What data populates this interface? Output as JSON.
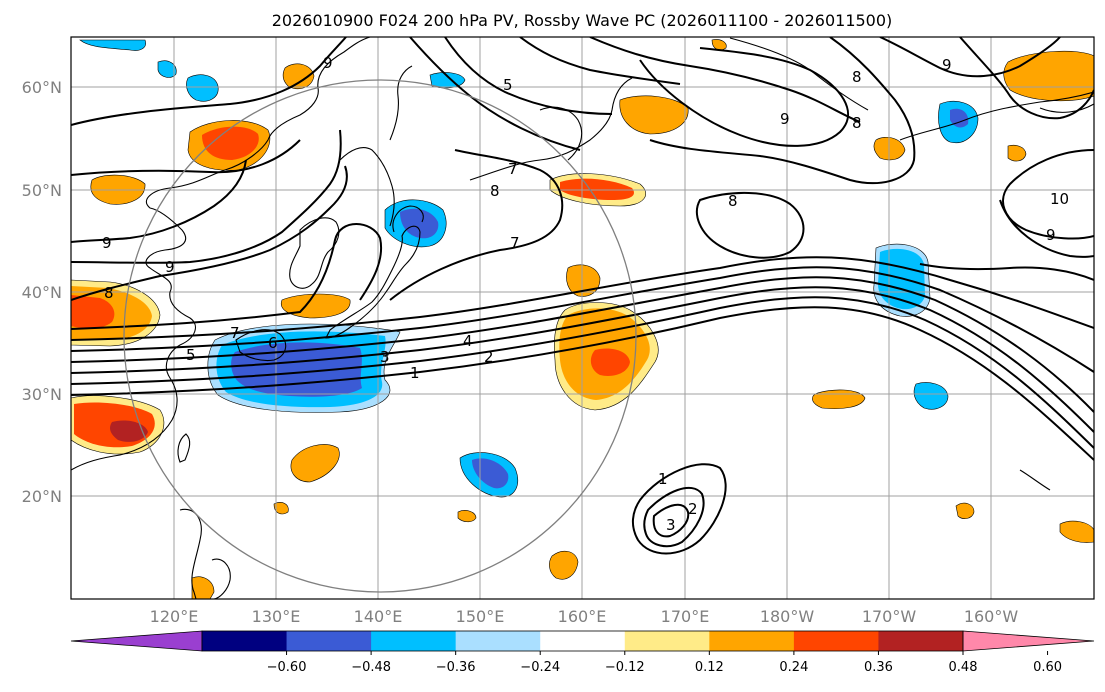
{
  "title": "2026010900 F024 200 hPa PV, Rossby Wave PC (2026011100 - 2026011500)",
  "lat_labels": [
    "60°N",
    "50°N",
    "40°N",
    "30°N",
    "20°N"
  ],
  "lon_labels": [
    "120°E",
    "130°E",
    "140°E",
    "150°E",
    "160°E",
    "170°E",
    "180°W",
    "170°W",
    "160°W"
  ],
  "colorbar": {
    "colors": [
      "#9a3fd0",
      "#000080",
      "#3b5bd5",
      "#00bfff",
      "#aadfff",
      "#ffffff",
      "#ffeb88",
      "#ffa500",
      "#ff4500",
      "#b22222",
      "#ff88aa"
    ],
    "tick_labels": [
      "−0.60",
      "−0.48",
      "−0.36",
      "−0.24",
      "−0.12",
      "0.12",
      "0.24",
      "0.36",
      "0.48",
      "0.60"
    ]
  },
  "contour_labels": [
    "9",
    "9",
    "5",
    "8",
    "8",
    "9",
    "9",
    "8",
    "8",
    "7",
    "7",
    "10",
    "9",
    "9",
    "8",
    "7",
    "5",
    "6",
    "4",
    "3",
    "2",
    "1",
    "1",
    "2",
    "3"
  ],
  "colors": {
    "contour": "#000000",
    "grid": "#a0a0a0",
    "circle": "#808080"
  }
}
